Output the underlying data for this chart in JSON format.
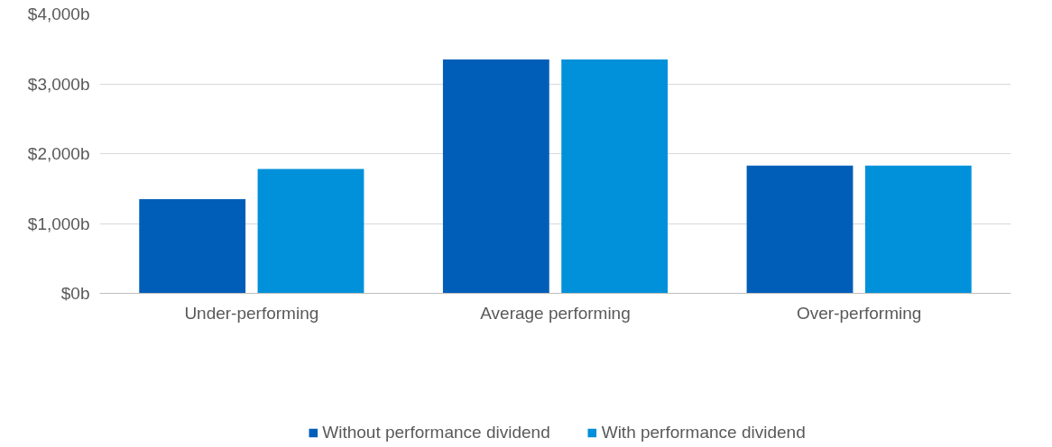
{
  "chart_data": {
    "type": "bar",
    "categories": [
      "Under-performing",
      "Average performing",
      "Over-performing"
    ],
    "series": [
      {
        "name": "Without performance dividend",
        "color": "#005eb8",
        "values": [
          1350,
          3350,
          1830
        ]
      },
      {
        "name": "With performance dividend",
        "color": "#0091da",
        "values": [
          1780,
          3350,
          1830
        ]
      }
    ],
    "ylim": [
      0,
      4000
    ],
    "yticks": [
      {
        "value": 0,
        "label": "$0b"
      },
      {
        "value": 1000,
        "label": "$1,000b"
      },
      {
        "value": 2000,
        "label": "$2,000b"
      },
      {
        "value": 3000,
        "label": "$3,000b"
      },
      {
        "value": 4000,
        "label": "$4,000b"
      }
    ],
    "grid": "y",
    "legend": "bottom"
  }
}
